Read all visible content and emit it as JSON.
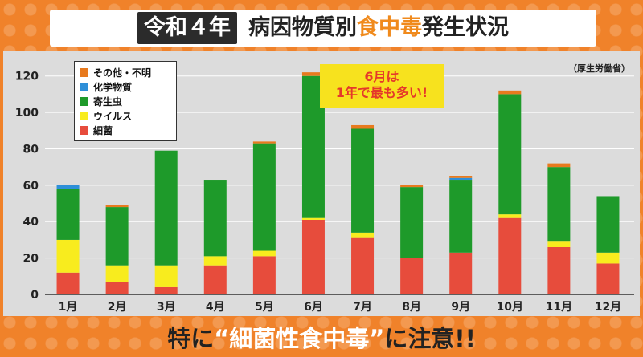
{
  "title": {
    "boxed": "令和４年",
    "part1": "病因物質別",
    "highlight": "食中毒",
    "part2": "発生状況"
  },
  "source": "（厚生労働省）",
  "callout": {
    "line1": "6月は",
    "line2": "1年で最も多い!"
  },
  "footer": {
    "pre": "特に",
    "quote": "“細菌性食中毒”",
    "post": "に注意!!"
  },
  "colors": {
    "細菌": "#e74c3c",
    "ウイルス": "#f8ec1e",
    "寄生虫": "#1e9a2a",
    "化学物質": "#2e8fd8",
    "その他・不明": "#e87a1e"
  },
  "chart_data": {
    "type": "bar",
    "stacked": true,
    "categories": [
      "1月",
      "2月",
      "3月",
      "4月",
      "5月",
      "6月",
      "7月",
      "8月",
      "9月",
      "10月",
      "11月",
      "12月"
    ],
    "ylim": [
      0,
      130
    ],
    "yticks": [
      0,
      20,
      40,
      60,
      80,
      100,
      120
    ],
    "grid": true,
    "legend_placement": "top-left",
    "legend": [
      "その他・不明",
      "化学物質",
      "寄生虫",
      "ウイルス",
      "細菌"
    ],
    "series": [
      {
        "name": "細菌",
        "values": [
          12,
          7,
          4,
          16,
          21,
          41,
          31,
          20,
          23,
          42,
          26,
          17
        ]
      },
      {
        "name": "ウイルス",
        "values": [
          18,
          9,
          12,
          5,
          3,
          1,
          3,
          0,
          0,
          2,
          3,
          6
        ]
      },
      {
        "name": "寄生虫",
        "values": [
          28,
          32,
          63,
          42,
          59,
          78,
          57,
          39,
          40,
          66,
          41,
          31
        ]
      },
      {
        "name": "化学物質",
        "values": [
          2,
          0,
          0,
          0,
          0,
          0,
          0,
          0,
          1,
          0,
          0,
          0
        ]
      },
      {
        "name": "その他・不明",
        "values": [
          0,
          1,
          0,
          0,
          1,
          2,
          2,
          1,
          1,
          2,
          2,
          0
        ]
      }
    ]
  }
}
